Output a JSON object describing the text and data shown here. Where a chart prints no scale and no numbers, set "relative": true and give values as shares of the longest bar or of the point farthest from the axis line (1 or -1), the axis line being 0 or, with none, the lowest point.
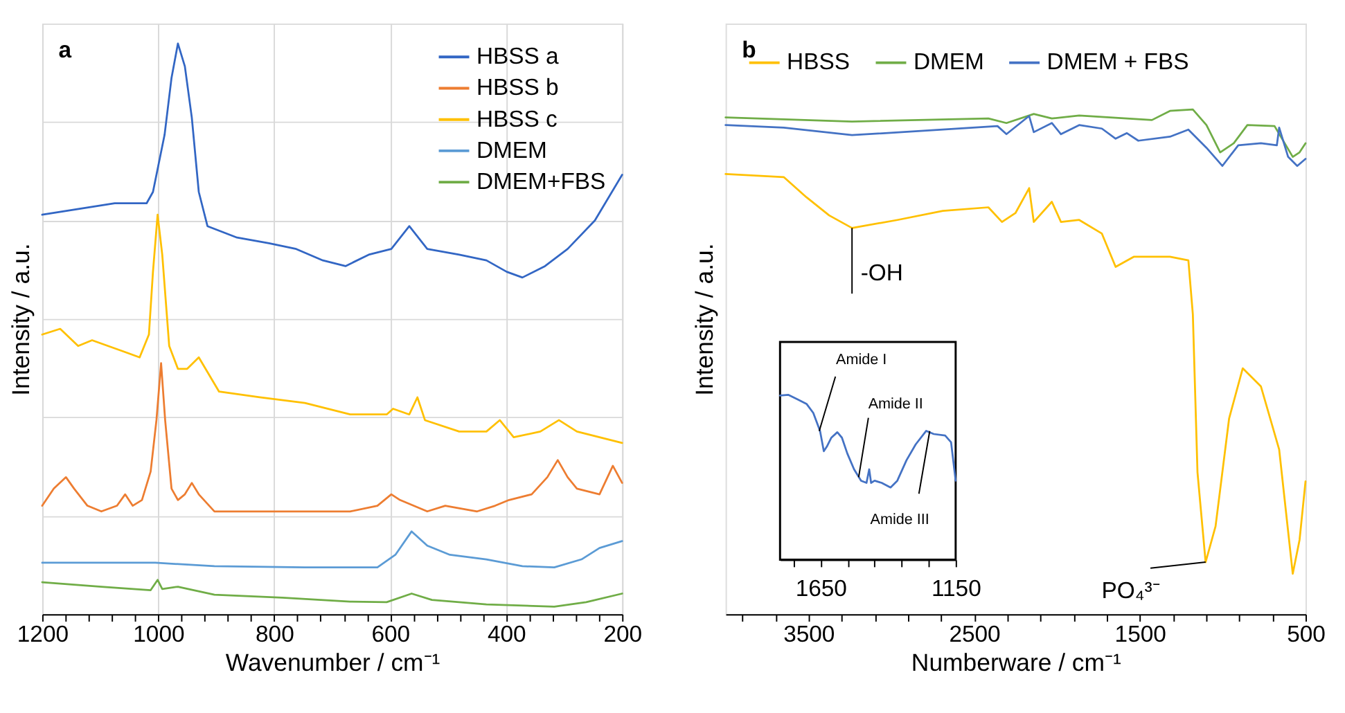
{
  "chart_data": [
    {
      "type": "line",
      "title": "a",
      "xlabel": "Wavenumber / cm⁻¹",
      "ylabel": "Intensity / a.u.",
      "relative": true,
      "grid": true,
      "legend": "top right",
      "line_style": "solid",
      "xlim": [
        1200,
        200
      ],
      "xticks": [
        1200,
        {
          "value": 1160,
          "label": null
        },
        {
          "value": 1120,
          "label": null
        },
        {
          "value": 1080,
          "label": null
        },
        {
          "value": 1040,
          "label": null
        },
        1000,
        {
          "value": 960,
          "label": null
        },
        {
          "value": 920,
          "label": null
        },
        {
          "value": 880,
          "label": null
        },
        {
          "value": 840,
          "label": null
        },
        800,
        {
          "value": 760,
          "label": null
        },
        {
          "value": 720,
          "label": null
        },
        {
          "value": 680,
          "label": null
        },
        {
          "value": 640,
          "label": null
        },
        600,
        {
          "value": 560,
          "label": null
        },
        {
          "value": 520,
          "label": null
        },
        {
          "value": 480,
          "label": null
        },
        {
          "value": 440,
          "label": null
        },
        400,
        {
          "value": 360,
          "label": null
        },
        {
          "value": 320,
          "label": null
        },
        {
          "value": 280,
          "label": null
        },
        {
          "value": 240,
          "label": null
        },
        200
      ],
      "series": [
        {
          "name": "HBSS a",
          "color": "#3266c4",
          "x": [
            1200,
            1137.5,
            1075,
            1020,
            1009,
            989,
            977,
            966,
            954,
            942,
            930,
            915,
            864,
            809,
            762,
            716,
            677,
            637,
            598,
            567,
            536,
            481,
            434,
            399,
            372,
            333,
            294,
            247,
            200
          ],
          "values": [
            0.7,
            0.71,
            0.72,
            0.72,
            0.74,
            0.84,
            0.94,
            1.0,
            0.96,
            0.87,
            0.74,
            0.68,
            0.66,
            0.65,
            0.64,
            0.62,
            0.61,
            0.63,
            0.64,
            0.68,
            0.64,
            0.63,
            0.62,
            0.6,
            0.59,
            0.61,
            0.64,
            0.69,
            0.77
          ]
        },
        {
          "name": "HBSS b",
          "color": "#ed7d31",
          "x": [
            1200,
            1180,
            1159,
            1145,
            1122,
            1098,
            1071,
            1057,
            1044,
            1028,
            1013,
            1003,
            995,
            988,
            977,
            966,
            954,
            942,
            930,
            903,
            825,
            747,
            669,
            622,
            598,
            583,
            536,
            505,
            450,
            419,
            395,
            356,
            329,
            311,
            294,
            278,
            239,
            216,
            200
          ],
          "values": [
            0.19,
            0.22,
            0.24,
            0.22,
            0.19,
            0.18,
            0.19,
            0.21,
            0.19,
            0.2,
            0.25,
            0.34,
            0.44,
            0.34,
            0.22,
            0.2,
            0.21,
            0.23,
            0.21,
            0.18,
            0.18,
            0.18,
            0.18,
            0.19,
            0.21,
            0.2,
            0.18,
            0.19,
            0.18,
            0.19,
            0.2,
            0.21,
            0.24,
            0.27,
            0.24,
            0.22,
            0.21,
            0.26,
            0.23
          ]
        },
        {
          "name": "HBSS c",
          "color": "#ffc000",
          "x": [
            1200,
            1169,
            1138,
            1114,
            1059,
            1032,
            1016,
            1009,
            1001,
            993,
            981,
            966,
            950,
            930,
            895,
            825,
            747,
            669,
            606,
            595,
            567,
            553,
            540,
            481,
            434,
            411,
            387,
            341,
            309,
            278,
            239,
            200
          ],
          "values": [
            0.49,
            0.5,
            0.47,
            0.48,
            0.46,
            0.45,
            0.49,
            0.6,
            0.7,
            0.63,
            0.47,
            0.43,
            0.43,
            0.45,
            0.39,
            0.38,
            0.37,
            0.35,
            0.35,
            0.36,
            0.35,
            0.38,
            0.34,
            0.32,
            0.32,
            0.34,
            0.31,
            0.32,
            0.34,
            0.32,
            0.31,
            0.3
          ]
        },
        {
          "name": "DMEM",
          "color": "#5b9bd5",
          "x": [
            1200,
            1005,
            903,
            747,
            622,
            591,
            563,
            536,
            497,
            434,
            372,
            317,
            270,
            239,
            200
          ],
          "values": [
            0.09,
            0.09,
            0.084,
            0.082,
            0.082,
            0.104,
            0.145,
            0.12,
            0.104,
            0.096,
            0.084,
            0.082,
            0.096,
            0.116,
            0.128
          ]
        },
        {
          "name": "DMEM+FBS",
          "color": "#70ad47",
          "x": [
            1200,
            1098,
            1013,
            1001,
            993,
            966,
            903,
            786,
            669,
            606,
            563,
            528,
            434,
            317,
            262,
            200
          ],
          "values": [
            0.056,
            0.048,
            0.042,
            0.06,
            0.044,
            0.048,
            0.034,
            0.029,
            0.022,
            0.021,
            0.036,
            0.025,
            0.017,
            0.013,
            0.021,
            0.036
          ]
        }
      ]
    },
    {
      "type": "line",
      "title": "b",
      "xlabel": "Numberware / cm⁻¹",
      "ylabel": "Intensity / a.u.",
      "relative": true,
      "legend": "top",
      "line_style": "solid",
      "xlim": [
        4000,
        500
      ],
      "xticks": [
        {
          "value": 3900,
          "label": null
        },
        {
          "value": 3700,
          "label": null
        },
        3500,
        {
          "value": 3300,
          "label": null
        },
        {
          "value": 3100,
          "label": null
        },
        {
          "value": 2900,
          "label": null
        },
        {
          "value": 2700,
          "label": null
        },
        2500,
        {
          "value": 2300,
          "label": null
        },
        {
          "value": 2100,
          "label": null
        },
        {
          "value": 1900,
          "label": null
        },
        {
          "value": 1700,
          "label": null
        },
        1500,
        {
          "value": 1300,
          "label": null
        },
        {
          "value": 1100,
          "label": null
        },
        {
          "value": 900,
          "label": null
        },
        {
          "value": 700,
          "label": null
        },
        500
      ],
      "series": [
        {
          "name": "HBSS",
          "color": "#ffc000",
          "x": [
            4000,
            3649,
            3512,
            3375,
            3237,
            2963,
            2689,
            2414,
            2332,
            2250,
            2168,
            2140,
            2031,
            1976,
            1866,
            1729,
            1646,
            1537,
            1318,
            1207,
            1180,
            1152,
            1103,
            1043,
            961,
            879,
            769,
            659,
            577,
            536,
            500
          ],
          "values": [
            0.872,
            0.866,
            0.826,
            0.79,
            0.765,
            0.781,
            0.799,
            0.806,
            0.777,
            0.795,
            0.844,
            0.777,
            0.817,
            0.777,
            0.781,
            0.754,
            0.688,
            0.708,
            0.708,
            0.701,
            0.594,
            0.281,
            0.103,
            0.174,
            0.388,
            0.487,
            0.451,
            0.326,
            0.08,
            0.147,
            0.263
          ]
        },
        {
          "name": "DMEM",
          "color": "#70ad47",
          "x": [
            4000,
            3237,
            2414,
            2305,
            2140,
            2031,
            1866,
            1427,
            1318,
            1180,
            1098,
            1015,
            933,
            851,
            687,
            577,
            536,
            500
          ],
          "values": [
            0.984,
            0.976,
            0.982,
            0.973,
            0.991,
            0.982,
            0.988,
            0.979,
            0.997,
            1.0,
            0.969,
            0.915,
            0.933,
            0.969,
            0.967,
            0.906,
            0.915,
            0.933
          ]
        },
        {
          "name": "DMEM + FBS",
          "color": "#4472c4",
          "x": [
            4000,
            3649,
            3237,
            2689,
            2359,
            2305,
            2168,
            2140,
            2031,
            1976,
            1866,
            1729,
            1646,
            1578,
            1509,
            1318,
            1207,
            1098,
            1002,
            906,
            769,
            673,
            659,
            605,
            550,
            500
          ],
          "values": [
            0.969,
            0.964,
            0.949,
            0.96,
            0.967,
            0.951,
            0.987,
            0.955,
            0.973,
            0.951,
            0.969,
            0.962,
            0.942,
            0.953,
            0.938,
            0.946,
            0.96,
            0.924,
            0.888,
            0.929,
            0.933,
            0.929,
            0.964,
            0.906,
            0.888,
            0.902
          ]
        }
      ],
      "annotations": [
        {
          "text": "-OH",
          "x": 3237,
          "y": 0.765
        },
        {
          "text": "PO₄³⁻",
          "x": 1103,
          "y": 0.103
        }
      ]
    },
    {
      "type": "line",
      "relative": true,
      "tick_labels": "x",
      "line_style": "solid",
      "xlim": [
        1800,
        1150
      ],
      "xticks": [
        {
          "value": 1750,
          "label": null
        },
        1650,
        {
          "value": 1550,
          "label": null
        },
        {
          "value": 1450,
          "label": null
        },
        {
          "value": 1350,
          "label": null
        },
        {
          "value": 1250,
          "label": null
        },
        1150
      ],
      "series": [
        {
          "color": "#4472c4",
          "x": [
            1800,
            1770,
            1736,
            1702,
            1677,
            1652,
            1638,
            1627,
            1610,
            1588,
            1571,
            1551,
            1526,
            1500,
            1480,
            1470,
            1463,
            1450,
            1424,
            1391,
            1366,
            1332,
            1298,
            1259,
            1231,
            1189,
            1167,
            1150
          ],
          "values": [
            0.995,
            1.0,
            0.973,
            0.945,
            0.89,
            0.781,
            0.658,
            0.685,
            0.74,
            0.773,
            0.74,
            0.644,
            0.548,
            0.479,
            0.466,
            0.548,
            0.466,
            0.479,
            0.466,
            0.438,
            0.479,
            0.603,
            0.699,
            0.781,
            0.762,
            0.753,
            0.712,
            0.479
          ]
        }
      ],
      "annotations": [
        {
          "text": "Amide I",
          "x": 1655,
          "y": 0.78
        },
        {
          "text": "Amide II",
          "x": 1509,
          "y": 0.5
        },
        {
          "text": "Amide III",
          "x": 1246,
          "y": 0.78
        }
      ]
    }
  ]
}
